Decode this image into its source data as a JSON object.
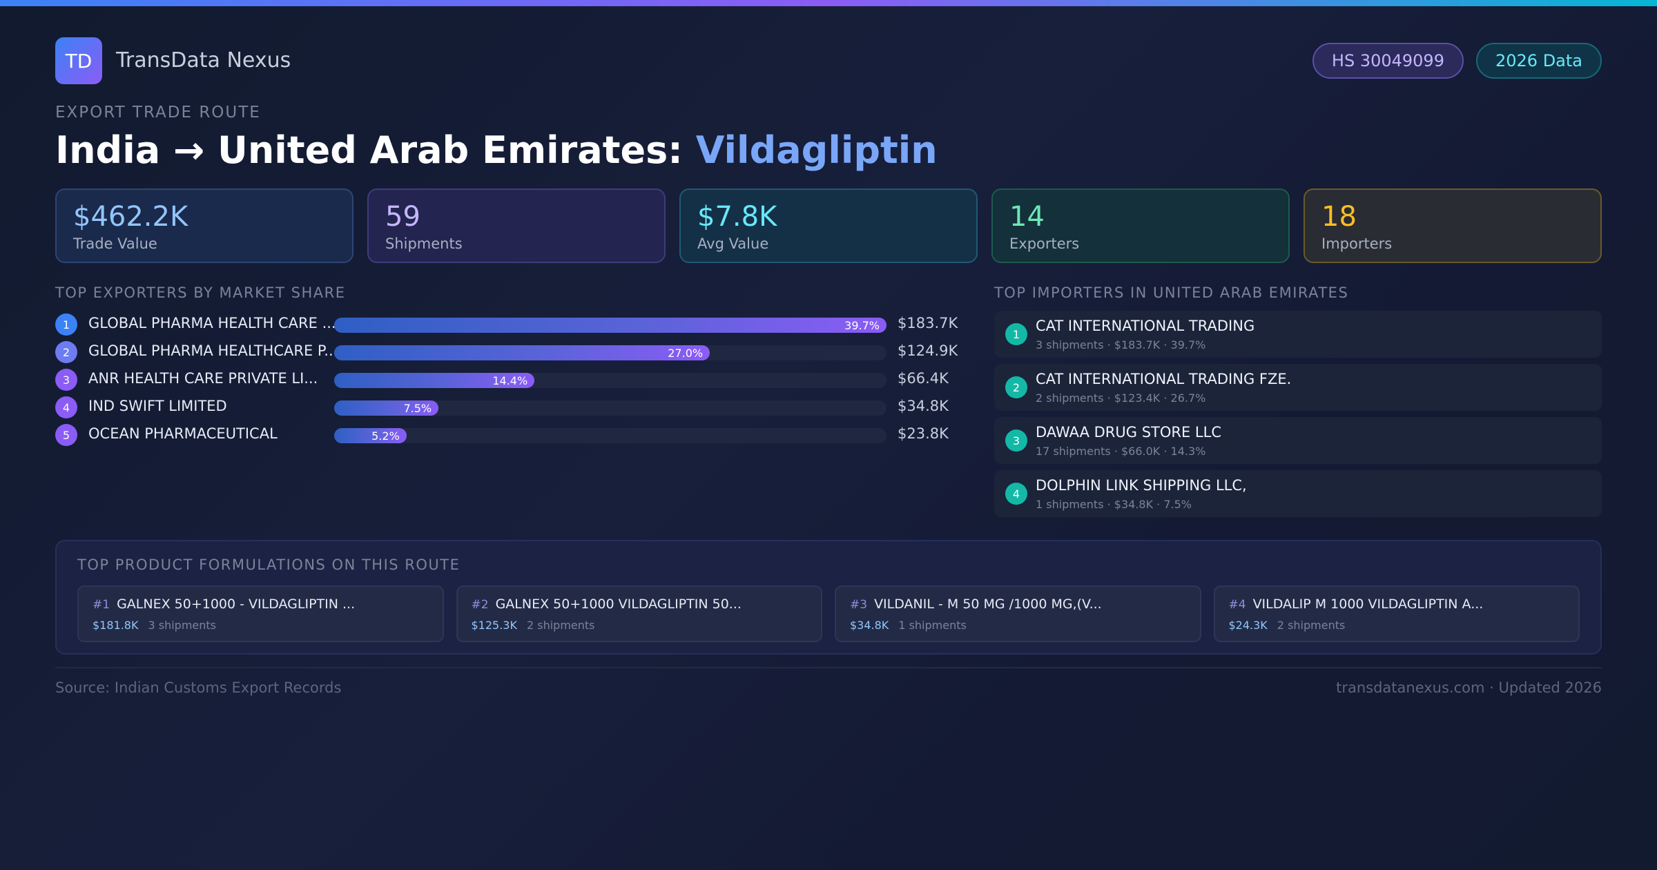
{
  "brand": {
    "logo_text": "TD",
    "name": "TransData Nexus"
  },
  "badges": {
    "hs_code": "HS 30049099",
    "year": "2026 Data"
  },
  "route": {
    "eyebrow": "EXPORT TRADE ROUTE",
    "title_prefix": "India → United Arab Emirates: ",
    "product": "Vildagliptin"
  },
  "kpis": [
    {
      "value": "$462.2K",
      "label": "Trade Value"
    },
    {
      "value": "59",
      "label": "Shipments"
    },
    {
      "value": "$7.8K",
      "label": "Avg Value"
    },
    {
      "value": "14",
      "label": "Exporters"
    },
    {
      "value": "18",
      "label": "Importers"
    }
  ],
  "exporters": {
    "title": "TOP EXPORTERS BY MARKET SHARE",
    "items": [
      {
        "rank": "1",
        "name": "GLOBAL PHARMA HEALTH CARE ...",
        "share": 39.7,
        "share_label": "39.7%",
        "value": "$183.7K",
        "color": "#3b82f6"
      },
      {
        "rank": "2",
        "name": "GLOBAL PHARMA HEALTHCARE P...",
        "share": 27.0,
        "share_label": "27.0%",
        "value": "$124.9K",
        "color": "#6d7cf0"
      },
      {
        "rank": "3",
        "name": "ANR HEALTH CARE PRIVATE LI...",
        "share": 14.4,
        "share_label": "14.4%",
        "value": "$66.4K",
        "color": "#8b5cf6"
      },
      {
        "rank": "4",
        "name": "IND SWIFT LIMITED",
        "share": 7.5,
        "share_label": "7.5%",
        "value": "$34.8K",
        "color": "#8b5cf6"
      },
      {
        "rank": "5",
        "name": "OCEAN PHARMACEUTICAL",
        "share": 5.2,
        "share_label": "5.2%",
        "value": "$23.8K",
        "color": "#8b5cf6"
      }
    ]
  },
  "importers": {
    "title": "TOP IMPORTERS IN UNITED ARAB EMIRATES",
    "items": [
      {
        "rank": "1",
        "name": "CAT INTERNATIONAL TRADING",
        "details": "3 shipments · $183.7K · 39.7%"
      },
      {
        "rank": "2",
        "name": "CAT INTERNATIONAL TRADING FZE.",
        "details": "2 shipments · $123.4K · 26.7%"
      },
      {
        "rank": "3",
        "name": "DAWAA DRUG STORE LLC",
        "details": "17 shipments · $66.0K · 14.3%"
      },
      {
        "rank": "4",
        "name": "DOLPHIN LINK SHIPPING LLC,",
        "details": "1 shipments · $34.8K · 7.5%"
      }
    ]
  },
  "formulations": {
    "title": "TOP PRODUCT FORMULATIONS ON THIS ROUTE",
    "items": [
      {
        "rank": "#1",
        "name": "GALNEX 50+1000 - VILDAGLIPTIN ...",
        "value": "$181.8K",
        "shipments": "3 shipments"
      },
      {
        "rank": "#2",
        "name": "GALNEX 50+1000 VILDAGLIPTIN 50...",
        "value": "$125.3K",
        "shipments": "2 shipments"
      },
      {
        "rank": "#3",
        "name": "VILDANIL - M 50 MG /1000 MG,(V...",
        "value": "$34.8K",
        "shipments": "1 shipments"
      },
      {
        "rank": "#4",
        "name": "VILDALIP M 1000 VILDAGLIPTIN A...",
        "value": "$24.3K",
        "shipments": "2 shipments"
      }
    ]
  },
  "footer": {
    "source": "Source: Indian Customs Export Records",
    "site": "transdatanexus.com · Updated 2026"
  }
}
